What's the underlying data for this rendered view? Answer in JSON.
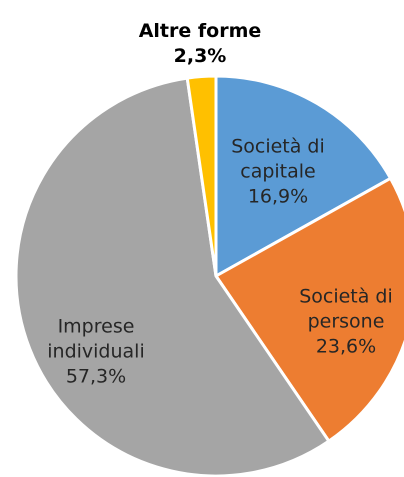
{
  "chart_data": {
    "type": "pie",
    "categories": [
      "Società di capitale",
      "Società di persone",
      "Imprese individuali",
      "Altre forme"
    ],
    "values": [
      16.9,
      23.6,
      57.3,
      2.3
    ],
    "value_labels": [
      "16,9%",
      "23,6%",
      "57,3%",
      "2,3%"
    ],
    "colors": [
      "#5b9bd5",
      "#ed7d31",
      "#a5a5a5",
      "#ffc000"
    ]
  }
}
